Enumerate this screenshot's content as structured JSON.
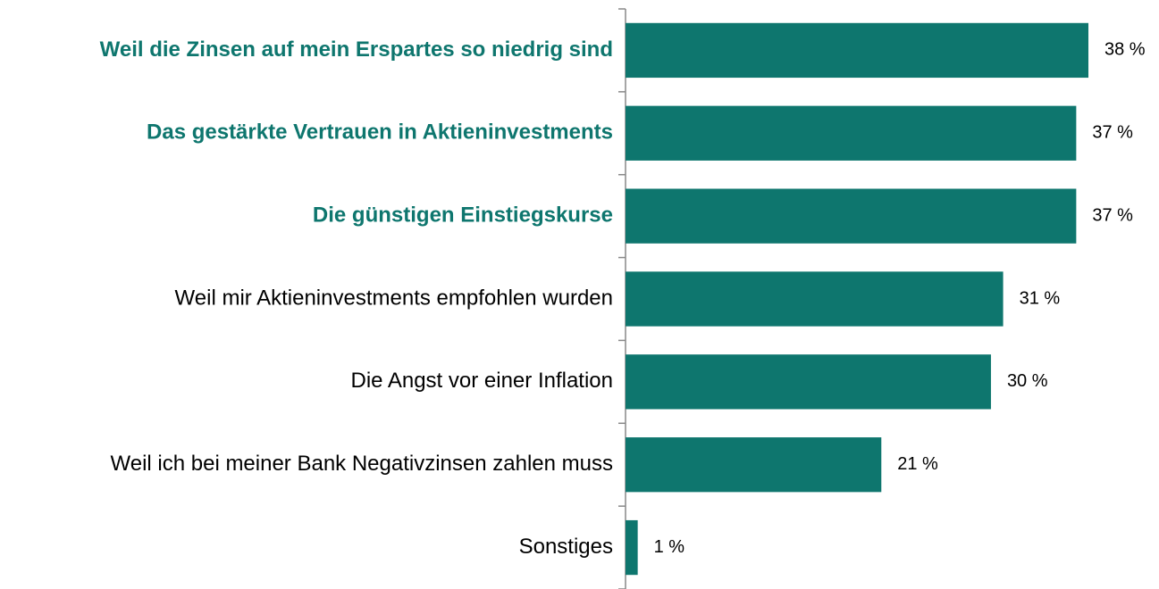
{
  "chart_data": {
    "type": "bar",
    "orientation": "horizontal",
    "categories": [
      "Weil die Zinsen auf mein Erspartes so niedrig sind",
      "Das gestärkte Vertrauen in Aktieninvestments",
      "Die günstigen Einstiegskurse",
      "Weil mir Aktieninvestments empfohlen wurden",
      "Die Angst vor einer Inflation",
      "Weil ich bei meiner Bank Negativzinsen zahlen muss",
      "Sonstiges"
    ],
    "values": [
      38,
      37,
      37,
      31,
      30,
      21,
      1
    ],
    "value_labels": [
      "38 %",
      "37 %",
      "37 %",
      "31 %",
      "30 %",
      "21 %",
      "1 %"
    ],
    "color": "#0e766e",
    "label_colors": [
      "#0e766e",
      "#0e766e",
      "#0e766e",
      "#000000",
      "#000000",
      "#000000",
      "#000000"
    ],
    "label_bold": [
      true,
      true,
      true,
      false,
      false,
      false,
      false
    ]
  }
}
